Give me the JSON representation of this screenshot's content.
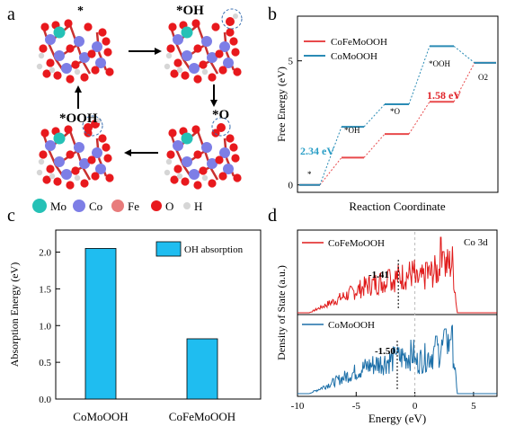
{
  "panel_labels": {
    "a": "a",
    "b": "b",
    "c": "c",
    "d": "d"
  },
  "panel_a": {
    "states": [
      {
        "label": "*",
        "position": "top-left"
      },
      {
        "label": "*OH",
        "position": "top-right"
      },
      {
        "label": "*O",
        "position": "bottom-right"
      },
      {
        "label": "*OOH",
        "position": "bottom-left"
      }
    ],
    "legend": [
      {
        "label": "Mo",
        "color": "#25c1b6"
      },
      {
        "label": "Co",
        "color": "#7d7ee6"
      },
      {
        "label": "Fe",
        "color": "#e87c7c"
      },
      {
        "label": "O",
        "color": "#e8191d"
      },
      {
        "label": "H",
        "color": "#d6d6d6"
      }
    ]
  },
  "chart_data": [
    {
      "panel": "b",
      "type": "line",
      "xlabel": "Reaction Coordinate",
      "ylabel": "Free Energy (eV)",
      "ylim": [
        -0.3,
        6.8
      ],
      "yticks": [
        0,
        5
      ],
      "intermediates": [
        "*",
        "*OH",
        "*O",
        "*OOH",
        "O2"
      ],
      "series": [
        {
          "name": "CoFeMoOOH",
          "color": "#e8494b",
          "values": [
            0,
            1.1,
            2.05,
            3.35,
            4.92
          ]
        },
        {
          "name": "CoMoOOH",
          "color": "#2a8bb5",
          "values": [
            0,
            2.34,
            3.25,
            5.59,
            4.92
          ]
        }
      ],
      "annotations": [
        {
          "text": "2.34 eV",
          "color": "#2a9ec6"
        },
        {
          "text": "1.58 eV",
          "color": "#e0242a"
        }
      ],
      "level_labels": [
        "*",
        "*OH",
        "*O",
        "*OOH",
        "O2"
      ],
      "legend_position": "top-left"
    },
    {
      "panel": "c",
      "type": "bar",
      "ylabel": "Absorption Energy (eV)",
      "ylim": [
        0,
        2.3
      ],
      "yticks": [
        0.0,
        0.5,
        1.0,
        1.5,
        2.0
      ],
      "categories": [
        "CoMoOOH",
        "CoFeMoOOH"
      ],
      "series": [
        {
          "name": "OH absorption",
          "color": "#1fbdf0",
          "values": [
            2.05,
            0.82
          ]
        }
      ],
      "legend_position": "top-right"
    },
    {
      "panel": "d",
      "type": "line",
      "xlabel": "Energy (eV)",
      "ylabel": "Density of State (a.u.)",
      "xlim": [
        -10,
        7
      ],
      "xticks": [
        -10,
        -5,
        0,
        5
      ],
      "title": "Co 3d",
      "series": [
        {
          "name": "CoFeMoOOH",
          "color": "#e01b1b",
          "d_band_center": -1.41
        },
        {
          "name": "CoMoOOH",
          "color": "#1c6fa8",
          "d_band_center": -1.5
        }
      ],
      "annotations": [
        {
          "text": "-1.41"
        },
        {
          "text": "-1.50"
        }
      ]
    }
  ]
}
